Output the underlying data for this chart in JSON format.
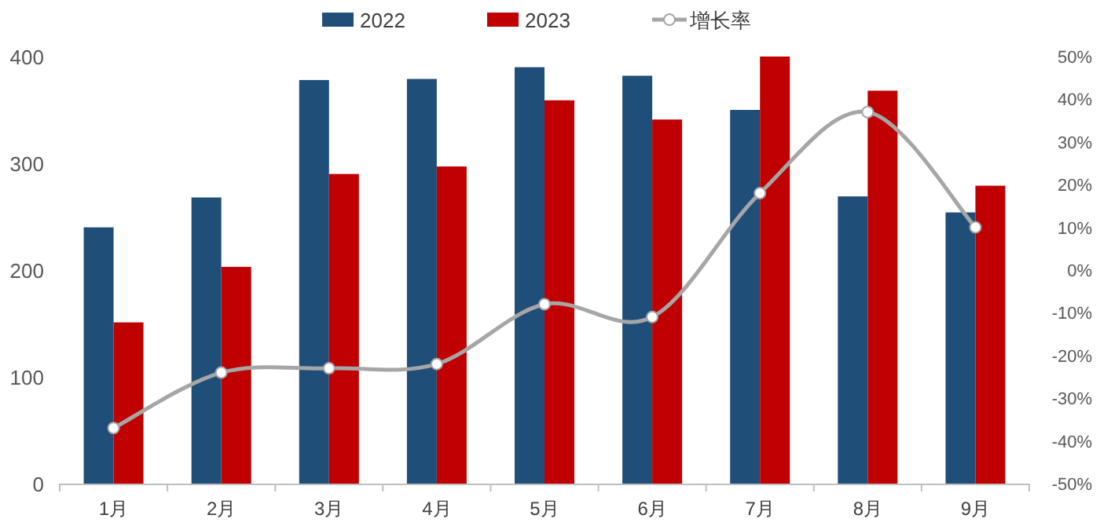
{
  "chart_data": {
    "type": "bar",
    "categories": [
      "1月",
      "2月",
      "3月",
      "4月",
      "5月",
      "6月",
      "7月",
      "8月",
      "9月"
    ],
    "series": [
      {
        "name": "2022",
        "color": "#1f4e79",
        "values": [
          240,
          268,
          378,
          379,
          390,
          382,
          350,
          269,
          254
        ]
      },
      {
        "name": "2023",
        "color": "#c00000",
        "values": [
          151,
          203,
          290,
          297,
          359,
          341,
          400,
          368,
          279
        ]
      },
      {
        "name": "增长率",
        "type": "line",
        "axis": "y2",
        "color": "#a6a6a6",
        "marker": "circle",
        "values": [
          -37,
          -24,
          -23,
          -22,
          -8,
          -11,
          18,
          37,
          10
        ]
      }
    ],
    "ylim": [
      0,
      400
    ],
    "yticks": [
      0,
      100,
      200,
      300,
      400
    ],
    "y2lim": [
      -50,
      50
    ],
    "y2ticks": [
      {
        "value": -50,
        "label": "-50%"
      },
      {
        "value": -40,
        "label": "-40%"
      },
      {
        "value": -30,
        "label": "-30%"
      },
      {
        "value": -20,
        "label": "-20%"
      },
      {
        "value": -10,
        "label": "-10%"
      },
      {
        "value": 0,
        "label": "0%"
      },
      {
        "value": 10,
        "label": "10%"
      },
      {
        "value": 20,
        "label": "20%"
      },
      {
        "value": 30,
        "label": "30%"
      },
      {
        "value": 40,
        "label": "40%"
      },
      {
        "value": 50,
        "label": "50%"
      }
    ],
    "grid": false,
    "legend": "top"
  }
}
